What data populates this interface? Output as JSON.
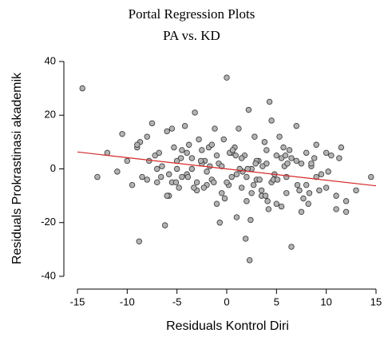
{
  "chart_data": {
    "type": "scatter",
    "title": "Portal Regression Plots",
    "subtitle": "PA vs. KD",
    "x_label": "Residuals Kontrol Diri",
    "y_label": "Residuals Prokrastinasi akademik",
    "xlim": [
      -15,
      15
    ],
    "ylim": [
      -40,
      40
    ],
    "xticks": [
      -15,
      -10,
      -5,
      0,
      5,
      10,
      15
    ],
    "yticks": [
      -40,
      -20,
      0,
      20,
      40
    ],
    "point_color": "#b3b3b3",
    "line_color": "#d62728",
    "series": [
      {
        "name": "Residuals",
        "x": [
          -14.5,
          0,
          -8.8,
          2.3,
          6.5,
          14.5,
          -13,
          -12,
          -10.5,
          4.3,
          -11,
          -10,
          -9.5,
          -9,
          -8.5,
          -8.7,
          -8,
          -7.5,
          -7,
          -7.2,
          -6.5,
          -6,
          -6.2,
          -5.5,
          -5.8,
          -5,
          -5.3,
          -4.8,
          -4.5,
          -4,
          -4.2,
          -3.5,
          -3.8,
          -3,
          -3.2,
          -2.5,
          -2.8,
          -2,
          -2.2,
          -1.5,
          -1.8,
          -1,
          -1.2,
          -0.5,
          -0.8,
          0.2,
          -0.3,
          0.5,
          0.8,
          1,
          1.2,
          1.5,
          1.8,
          2,
          2.2,
          2.5,
          2.8,
          3,
          3.2,
          3.5,
          3.8,
          4,
          4.2,
          4.5,
          4.8,
          5,
          5.3,
          5.5,
          5.8,
          6,
          6.3,
          6.5,
          7,
          7.3,
          7.5,
          8,
          8.2,
          8.5,
          8.8,
          9,
          9.5,
          10,
          10.5,
          11,
          11.5,
          12,
          13,
          -9,
          -8,
          -7,
          -6.8,
          -6,
          -5.5,
          -5,
          -4.5,
          -4,
          -3.5,
          -3,
          -2.5,
          -2,
          -1.5,
          -1,
          -0.5,
          0,
          0.5,
          1,
          1.5,
          2,
          2.5,
          3,
          3.5,
          4,
          4.5,
          5,
          5.5,
          6,
          7,
          7.5,
          8,
          8.5,
          9,
          10,
          11,
          12,
          -5.8,
          -4.6,
          -3.3,
          -1.7,
          0.3,
          1.6,
          2.7,
          3.6,
          4.7,
          5.7,
          7.7,
          9.3,
          -6.6,
          -2.6,
          -0.2,
          0.9,
          2.1,
          3.3,
          4.1,
          6.1,
          8.3,
          10.2,
          -7.8,
          -3.9,
          -1.3,
          1.3,
          2.9,
          5.1,
          7.1,
          11.3,
          -0.7,
          1.9,
          3.9,
          5.9,
          -5.1,
          -2.3,
          0.6,
          2.4
        ],
        "y": [
          30,
          34,
          -27,
          -34,
          -29,
          -3,
          -3,
          6,
          13,
          25,
          -1,
          3,
          -6,
          8,
          -3,
          10,
          12,
          17,
          -5,
          5,
          1,
          14,
          -21,
          15,
          -10,
          3,
          8,
          -7,
          -3,
          6,
          16,
          0,
          9,
          -5,
          21,
          7,
          11,
          -1,
          3,
          -4,
          8,
          5,
          15,
          -9,
          2,
          -6,
          11,
          -3,
          8,
          -2,
          15,
          -7,
          5,
          -12,
          22,
          0,
          12,
          -4,
          3,
          -8,
          10,
          7,
          -15,
          18,
          -2,
          5,
          12,
          -14,
          1,
          -3,
          7,
          4,
          16,
          -8,
          2,
          6,
          -13,
          1,
          4,
          9,
          -2,
          -7,
          5,
          -15,
          8,
          -12,
          -8,
          9,
          -4,
          0,
          6,
          -10,
          -5,
          0,
          7,
          -2,
          4,
          -8,
          2,
          -6,
          9,
          -13,
          1,
          -5,
          6,
          -18,
          4,
          -3,
          -9,
          3,
          -10,
          2,
          -5,
          -13,
          4,
          -9,
          3,
          -16,
          -6,
          2,
          -3,
          6,
          -10,
          -16,
          -2,
          4,
          -7,
          1,
          6,
          -1,
          -6,
          1,
          -4,
          8,
          -11,
          -8,
          -3,
          3,
          -11,
          5,
          0,
          -4,
          -12,
          2,
          -9,
          -1,
          3,
          -3,
          -5,
          0,
          2,
          -4,
          -6,
          4,
          -20,
          -26,
          -10,
          5,
          -5,
          -7,
          7,
          -19
        ]
      }
    ],
    "regression_line": {
      "x": [
        -15,
        15
      ],
      "y": [
        6.3,
        -6.3
      ]
    }
  }
}
